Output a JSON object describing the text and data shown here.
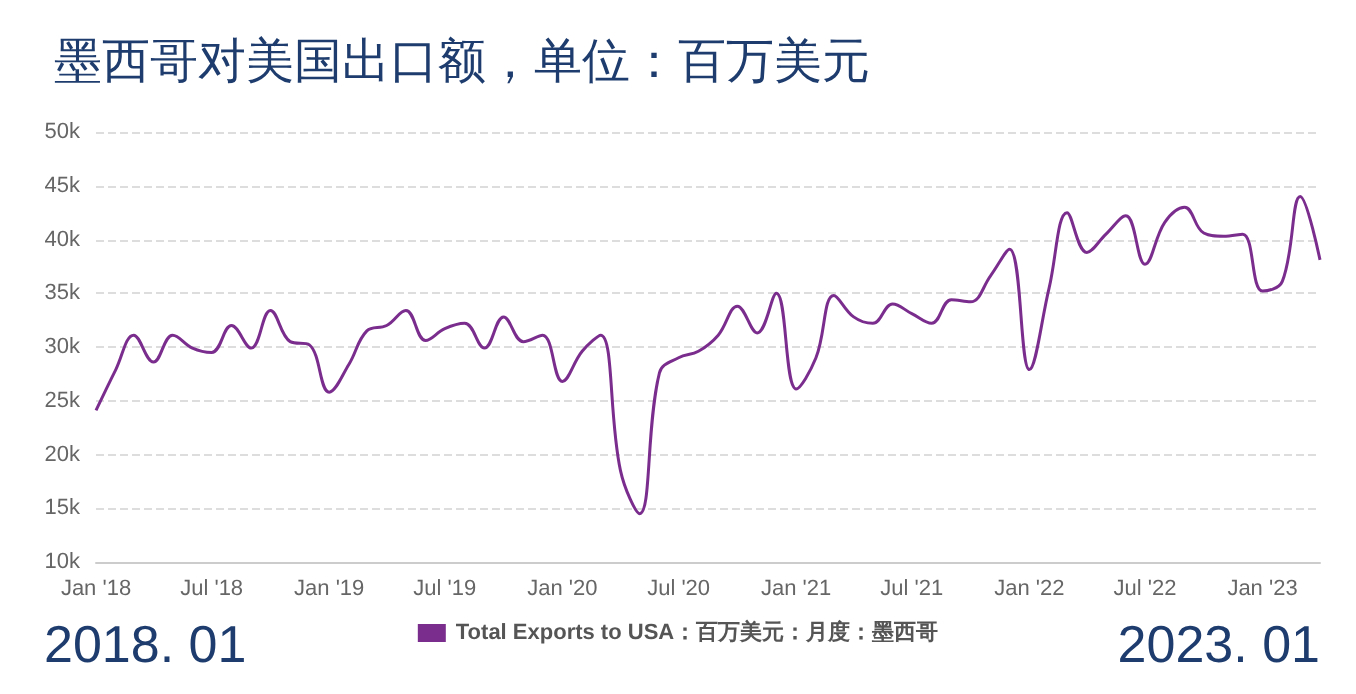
{
  "chart_data": {
    "type": "line",
    "title": "墨西哥对美国出口额，单位：百万美元",
    "x": [
      "2018-01",
      "2018-02",
      "2018-03",
      "2018-04",
      "2018-05",
      "2018-06",
      "2018-07",
      "2018-08",
      "2018-09",
      "2018-10",
      "2018-11",
      "2018-12",
      "2019-01",
      "2019-02",
      "2019-03",
      "2019-04",
      "2019-05",
      "2019-06",
      "2019-07",
      "2019-08",
      "2019-09",
      "2019-10",
      "2019-11",
      "2019-12",
      "2020-01",
      "2020-02",
      "2020-03",
      "2020-04",
      "2020-05",
      "2020-06",
      "2020-07",
      "2020-08",
      "2020-09",
      "2020-10",
      "2020-11",
      "2020-12",
      "2021-01",
      "2021-02",
      "2021-03",
      "2021-04",
      "2021-05",
      "2021-06",
      "2021-07",
      "2021-08",
      "2021-09",
      "2021-10",
      "2021-11",
      "2021-12",
      "2022-01",
      "2022-02",
      "2022-03",
      "2022-04",
      "2022-05",
      "2022-06",
      "2022-07",
      "2022-08",
      "2022-09",
      "2022-10",
      "2022-11",
      "2022-12",
      "2023-01",
      "2023-02",
      "2023-03",
      "2023-04"
    ],
    "series": [
      {
        "name": "Total Exports to USA：百万美元：月度：墨西哥",
        "color": "#7b2d8e",
        "values": [
          24100,
          27900,
          31100,
          28600,
          31100,
          29900,
          29500,
          32000,
          29900,
          33400,
          30500,
          30200,
          25800,
          28400,
          31500,
          32000,
          33400,
          30600,
          31700,
          32200,
          29900,
          32800,
          30500,
          31100,
          26800,
          29600,
          31100,
          18500,
          14500,
          27600,
          29000,
          29600,
          31100,
          33800,
          31300,
          35000,
          26100,
          29000,
          34800,
          32800,
          32200,
          34000,
          33100,
          32200,
          34400,
          34200,
          36600,
          39100,
          27900,
          35500,
          42500,
          38800,
          40500,
          42200,
          37700,
          41600,
          43000,
          40600,
          40300,
          40500,
          35200,
          36100,
          44000,
          38100
        ]
      }
    ],
    "xlim": [
      "2018-01",
      "2023-04"
    ],
    "xticks": [
      {
        "value": "2018-01",
        "label": "Jan '18"
      },
      {
        "value": "2018-07",
        "label": "Jul '18"
      },
      {
        "value": "2019-01",
        "label": "Jan '19"
      },
      {
        "value": "2019-07",
        "label": "Jul '19"
      },
      {
        "value": "2020-01",
        "label": "Jan '20"
      },
      {
        "value": "2020-07",
        "label": "Jul '20"
      },
      {
        "value": "2021-01",
        "label": "Jan '21"
      },
      {
        "value": "2021-07",
        "label": "Jul '21"
      },
      {
        "value": "2022-01",
        "label": "Jan '22"
      },
      {
        "value": "2022-07",
        "label": "Jul '22"
      },
      {
        "value": "2023-01",
        "label": "Jan '23"
      }
    ],
    "ylim": [
      10000,
      50000
    ],
    "yticks": [
      {
        "value": 10000,
        "label": "10k"
      },
      {
        "value": 15000,
        "label": "15k"
      },
      {
        "value": 20000,
        "label": "20k"
      },
      {
        "value": 25000,
        "label": "25k"
      },
      {
        "value": 30000,
        "label": "30k"
      },
      {
        "value": 35000,
        "label": "35k"
      },
      {
        "value": 40000,
        "label": "40k"
      },
      {
        "value": 45000,
        "label": "45k"
      },
      {
        "value": 50000,
        "label": "50k"
      }
    ],
    "grid": "y",
    "legend": "bottom",
    "marker": "none",
    "annotations": [
      "2018. 01",
      "2023. 01"
    ]
  }
}
